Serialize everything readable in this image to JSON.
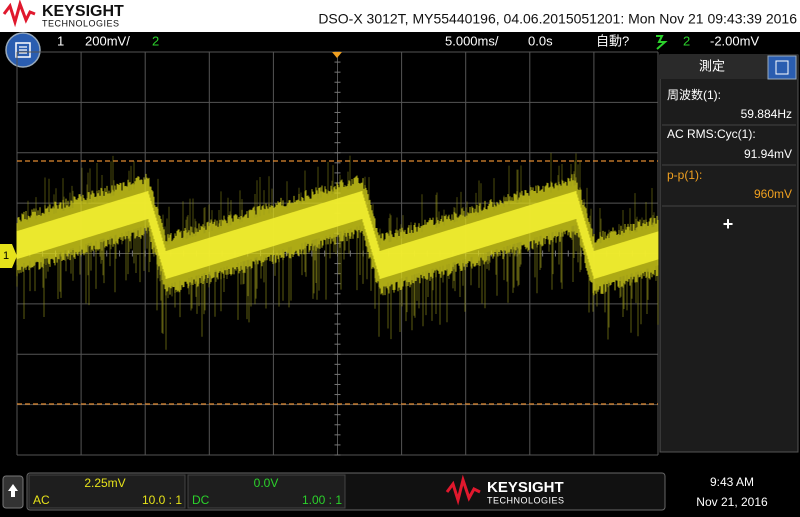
{
  "header": {
    "brand": "KEYSIGHT",
    "brand_sub": "TECHNOLOGIES",
    "title": "DSO-X 3012T, MY55440196, 04.06.2015051201: Mon Nov 21 09:43:39 2016"
  },
  "status_bar": {
    "channel1": "1",
    "channel1_scale": "200mV/",
    "channel2": "2",
    "time_scale": "5.000ms/",
    "delay": "0.0s",
    "trigger_mode": "自動?",
    "trigger_source": "2",
    "trigger_level": "-2.00mV"
  },
  "screen": {
    "channel_marker": "1"
  },
  "measurements": {
    "title": "測定",
    "items": [
      {
        "label": "周波数(1):",
        "value": "59.884Hz"
      },
      {
        "label": "AC RMS:Cyc(1):",
        "value": "91.94mV"
      },
      {
        "label": "p-p(1):",
        "value": "960mV"
      }
    ],
    "add": "+"
  },
  "footer": {
    "channel1": {
      "offset": "2.25mV",
      "coupling": "AC",
      "probe": "10.0 : 1"
    },
    "channel2": {
      "offset": "0.0V",
      "coupling": "DC",
      "probe": "1.00 : 1"
    },
    "brand": "KEYSIGHT",
    "brand_sub": "TECHNOLOGIES",
    "time": "9:43 AM",
    "date": "Nov 21, 2016"
  }
}
